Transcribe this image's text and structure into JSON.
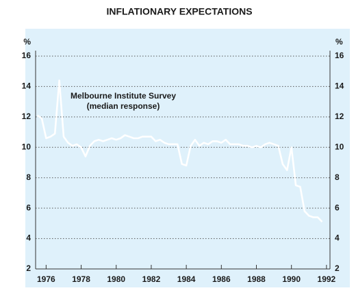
{
  "chart_data": {
    "type": "line",
    "title": "INFLATIONARY EXPECTATIONS",
    "ylabel": "%",
    "annotations": [
      "Melbourne Institute Survey",
      "(median response)"
    ],
    "xlim": [
      1975.4,
      1992.2
    ],
    "xticks": [
      1976,
      1978,
      1980,
      1982,
      1984,
      1986,
      1988,
      1990,
      1992
    ],
    "ylim": [
      2,
      16
    ],
    "yticks": [
      2,
      4,
      6,
      8,
      10,
      12,
      14,
      16
    ],
    "grid": true,
    "series": [
      {
        "name": "Melbourne Institute Survey",
        "color": "#ffffff",
        "x": [
          1975.5,
          1975.75,
          1976,
          1976.25,
          1976.5,
          1976.75,
          1977,
          1977.25,
          1977.5,
          1977.75,
          1978,
          1978.25,
          1978.5,
          1978.75,
          1979,
          1979.25,
          1979.5,
          1979.75,
          1980,
          1980.25,
          1980.5,
          1980.75,
          1981,
          1981.25,
          1981.5,
          1981.75,
          1982,
          1982.25,
          1982.5,
          1982.75,
          1983,
          1983.25,
          1983.5,
          1983.75,
          1984,
          1984.25,
          1984.5,
          1984.75,
          1985,
          1985.25,
          1985.5,
          1985.75,
          1986,
          1986.25,
          1986.5,
          1986.75,
          1987,
          1987.25,
          1987.5,
          1987.75,
          1988,
          1988.25,
          1988.5,
          1988.75,
          1989,
          1989.25,
          1989.5,
          1989.75,
          1990,
          1990.25,
          1990.5,
          1990.75,
          1991,
          1991.25,
          1991.5,
          1991.75
        ],
        "values": [
          12.1,
          11.9,
          10.6,
          10.7,
          10.9,
          14.4,
          10.7,
          10.3,
          10.1,
          10.2,
          10.0,
          9.4,
          10.1,
          10.4,
          10.5,
          10.4,
          10.5,
          10.6,
          10.5,
          10.6,
          10.8,
          10.7,
          10.6,
          10.6,
          10.7,
          10.7,
          10.7,
          10.4,
          10.5,
          10.3,
          10.2,
          10.2,
          10.2,
          8.9,
          8.8,
          10.1,
          10.5,
          10.1,
          10.3,
          10.2,
          10.4,
          10.4,
          10.3,
          10.5,
          10.2,
          10.2,
          10.2,
          10.1,
          10.1,
          10.0,
          10.1,
          10.0,
          10.2,
          10.3,
          10.2,
          10.1,
          8.9,
          8.5,
          10.0,
          7.5,
          7.4,
          5.8,
          5.5,
          5.4,
          5.4,
          5.1
        ]
      }
    ]
  }
}
